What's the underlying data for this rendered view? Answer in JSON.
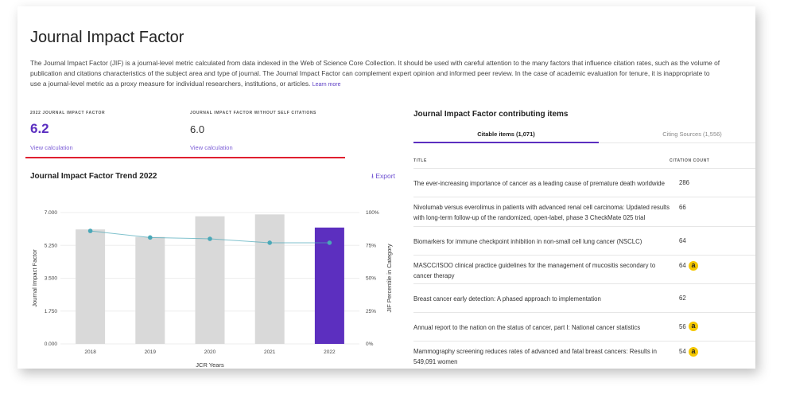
{
  "header": {
    "title": "Journal Impact Factor",
    "description": "The Journal Impact Factor (JIF) is a journal-level metric calculated from data indexed in the Web of Science Core Collection. It should be used with careful attention to the many factors that influence citation rates, such as the volume of publication and citations characteristics of the subject area and type of journal. The Journal Impact Factor can complement expert opinion and informed peer review. In the case of academic evaluation for tenure, it is inappropriate to use a journal-level metric as a proxy measure for individual researchers, institutions, or articles.",
    "learn_more": "Learn more"
  },
  "metrics": [
    {
      "label": "2022 JOURNAL IMPACT FACTOR",
      "value": "6.2",
      "link": "View calculation"
    },
    {
      "label": "JOURNAL IMPACT FACTOR WITHOUT SELF CITATIONS",
      "value": "6.0",
      "link": "View calculation"
    }
  ],
  "colors": {
    "accent": "#5b2fc0",
    "highlight_bar": "#5c2fbf",
    "bar": "#d9d9d9",
    "line": "#4aa8b8",
    "red_rule": "#e02030",
    "oa_badge": "#f5c800"
  },
  "trend": {
    "title": "Journal Impact Factor Trend 2022",
    "export": "Export",
    "export_icon": "download-icon"
  },
  "chart_data": {
    "type": "bar",
    "categories": [
      "2018",
      "2019",
      "2020",
      "2021",
      "2022"
    ],
    "xlabel": "JCR Years",
    "ylabel": "Journal Impact Factor",
    "y2label": "JIF Percentile in Category",
    "ylim": [
      0,
      7
    ],
    "yticks": [
      "0.000",
      "1.750",
      "3.500",
      "5.250",
      "7.000"
    ],
    "y2lim": [
      0,
      100
    ],
    "y2ticks": [
      "0%",
      "25%",
      "50%",
      "75%",
      "100%"
    ],
    "grid": true,
    "series": [
      {
        "type": "bar",
        "values": [
          6.1,
          5.7,
          6.8,
          6.9,
          6.2
        ],
        "highlight": "2022"
      },
      {
        "type": "line",
        "axis": "right",
        "values": [
          86,
          81,
          80,
          77,
          77
        ]
      }
    ]
  },
  "contrib": {
    "title": "Journal Impact Factor contributing items",
    "tabs": [
      {
        "label": "Citable items (1,071)",
        "active": true
      },
      {
        "label": "Citing Sources (1,556)",
        "active": false
      }
    ],
    "col_title": "TITLE",
    "col_count": "CITATION COUNT",
    "rows": [
      {
        "title": "The ever-increasing importance of cancer as a leading cause of premature death worldwide",
        "count": "286",
        "oa": false
      },
      {
        "title": "Nivolumab versus everolimus in patients with advanced renal cell carcinoma: Updated results with long-term follow-up of the randomized, open-label, phase 3 CheckMate 025 trial",
        "count": "66",
        "oa": false
      },
      {
        "title": "Biomarkers for immune checkpoint inhibition in non-small cell lung cancer (NSCLC)",
        "count": "64",
        "oa": false
      },
      {
        "title": "MASCC/ISOO clinical practice guidelines for the management of mucositis secondary to cancer therapy",
        "count": "64",
        "oa": true
      },
      {
        "title": "Breast cancer early detection: A phased approach to implementation",
        "count": "62",
        "oa": false
      },
      {
        "title": "Annual report to the nation on the status of cancer, part I: National cancer statistics",
        "count": "56",
        "oa": true
      },
      {
        "title": "Mammography screening reduces rates of advanced and fatal breast cancers: Results in 549,091 women",
        "count": "54",
        "oa": true
      }
    ],
    "oa_glyph": "a"
  }
}
